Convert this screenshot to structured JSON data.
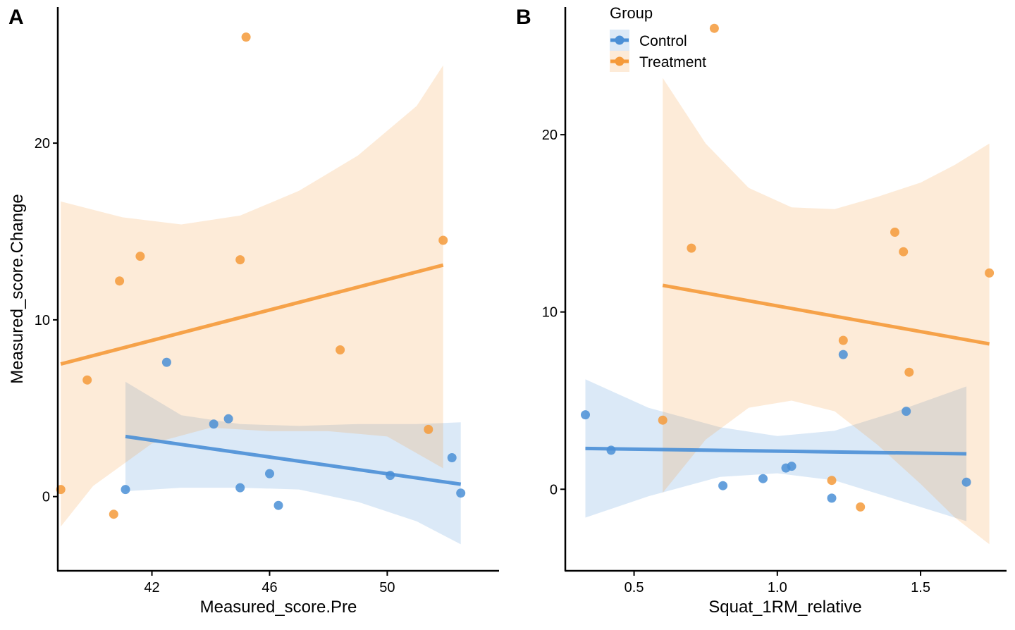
{
  "chart_data": [
    {
      "type": "scatter",
      "panel_tag": "A",
      "xlabel": "Measured_score.Pre",
      "ylabel": "Measured_score.Change",
      "xlim": [
        38.8,
        53.8
      ],
      "ylim": [
        -4.2,
        27.7
      ],
      "xticks": [
        42,
        46,
        50
      ],
      "xtick_labels": [
        "42",
        "46",
        "50"
      ],
      "yticks": [
        0,
        10,
        20
      ],
      "ytick_labels": [
        "0",
        "10",
        "20"
      ],
      "grid": false,
      "series": [
        {
          "name": "Control",
          "points": [
            [
              41.1,
              0.4
            ],
            [
              42.5,
              7.6
            ],
            [
              44.1,
              4.1
            ],
            [
              44.6,
              4.4
            ],
            [
              45.0,
              0.5
            ],
            [
              46.0,
              1.3
            ],
            [
              46.3,
              -0.5
            ],
            [
              50.1,
              1.2
            ],
            [
              52.2,
              2.2
            ],
            [
              52.5,
              0.2
            ]
          ],
          "fit": [
            [
              41.1,
              3.4
            ],
            [
              52.5,
              0.7
            ]
          ],
          "ci_upper": [
            [
              41.1,
              6.5
            ],
            [
              43.0,
              4.6
            ],
            [
              45.0,
              4.1
            ],
            [
              47.0,
              4.0
            ],
            [
              49.0,
              4.1
            ],
            [
              51.0,
              4.1
            ],
            [
              52.5,
              4.2
            ]
          ],
          "ci_lower": [
            [
              41.1,
              0.3
            ],
            [
              43.0,
              0.5
            ],
            [
              45.0,
              0.5
            ],
            [
              47.0,
              0.4
            ],
            [
              49.0,
              -0.3
            ],
            [
              51.0,
              -1.4
            ],
            [
              52.5,
              -2.7
            ]
          ]
        },
        {
          "name": "Treatment",
          "points": [
            [
              38.9,
              0.4
            ],
            [
              39.8,
              6.6
            ],
            [
              40.7,
              -1.0
            ],
            [
              40.9,
              12.2
            ],
            [
              41.6,
              13.6
            ],
            [
              45.0,
              13.4
            ],
            [
              45.2,
              26.0
            ],
            [
              48.4,
              8.3
            ],
            [
              51.4,
              3.8
            ],
            [
              51.9,
              14.5
            ]
          ],
          "fit": [
            [
              38.9,
              7.5
            ],
            [
              51.9,
              13.1
            ]
          ],
          "ci_upper": [
            [
              38.9,
              16.7
            ],
            [
              41.0,
              15.8
            ],
            [
              43.0,
              15.4
            ],
            [
              45.0,
              15.9
            ],
            [
              47.0,
              17.3
            ],
            [
              49.0,
              19.3
            ],
            [
              51.0,
              22.1
            ],
            [
              51.9,
              24.4
            ]
          ],
          "ci_lower": [
            [
              38.9,
              -1.7
            ],
            [
              40.0,
              0.6
            ],
            [
              42.0,
              3.0
            ],
            [
              44.0,
              3.9
            ],
            [
              46.0,
              3.7
            ],
            [
              48.0,
              3.7
            ],
            [
              50.0,
              3.4
            ],
            [
              51.9,
              1.6
            ]
          ]
        }
      ]
    },
    {
      "type": "scatter",
      "panel_tag": "B",
      "xlabel": "Squat_1RM_relative",
      "ylabel": "",
      "xlim": [
        0.26,
        1.8
      ],
      "ylim": [
        -4.6,
        27.2
      ],
      "xticks": [
        0.5,
        1.0,
        1.5
      ],
      "xtick_labels": [
        "0.5",
        "1.0",
        "1.5"
      ],
      "yticks": [
        0,
        10,
        20
      ],
      "ytick_labels": [
        "0",
        "10",
        "20"
      ],
      "grid": false,
      "series": [
        {
          "name": "Control",
          "points": [
            [
              0.33,
              4.2
            ],
            [
              0.42,
              2.2
            ],
            [
              0.81,
              0.2
            ],
            [
              0.95,
              0.6
            ],
            [
              1.03,
              1.2
            ],
            [
              1.05,
              1.3
            ],
            [
              1.19,
              -0.5
            ],
            [
              1.23,
              7.6
            ],
            [
              1.45,
              4.4
            ],
            [
              1.66,
              0.4
            ]
          ],
          "fit": [
            [
              0.33,
              2.3
            ],
            [
              1.66,
              2.0
            ]
          ],
          "ci_upper": [
            [
              0.33,
              6.2
            ],
            [
              0.55,
              4.6
            ],
            [
              0.8,
              3.5
            ],
            [
              1.0,
              3.0
            ],
            [
              1.2,
              3.3
            ],
            [
              1.4,
              4.3
            ],
            [
              1.66,
              5.8
            ]
          ],
          "ci_lower": [
            [
              0.33,
              -1.6
            ],
            [
              0.55,
              -0.4
            ],
            [
              0.8,
              0.7
            ],
            [
              1.0,
              0.9
            ],
            [
              1.2,
              0.5
            ],
            [
              1.4,
              -0.5
            ],
            [
              1.66,
              -1.8
            ]
          ]
        },
        {
          "name": "Treatment",
          "points": [
            [
              0.6,
              3.9
            ],
            [
              0.7,
              13.6
            ],
            [
              0.78,
              26.0
            ],
            [
              1.19,
              0.5
            ],
            [
              1.23,
              8.4
            ],
            [
              1.29,
              -1.0
            ],
            [
              1.41,
              14.5
            ],
            [
              1.44,
              13.4
            ],
            [
              1.46,
              6.6
            ],
            [
              1.74,
              12.2
            ]
          ],
          "fit": [
            [
              0.6,
              11.5
            ],
            [
              1.74,
              8.2
            ]
          ],
          "ci_upper": [
            [
              0.6,
              23.2
            ],
            [
              0.75,
              19.5
            ],
            [
              0.9,
              17.0
            ],
            [
              1.05,
              15.9
            ],
            [
              1.2,
              15.8
            ],
            [
              1.35,
              16.5
            ],
            [
              1.5,
              17.3
            ],
            [
              1.62,
              18.3
            ],
            [
              1.74,
              19.5
            ]
          ],
          "ci_lower": [
            [
              0.6,
              -0.2
            ],
            [
              0.75,
              2.8
            ],
            [
              0.9,
              4.6
            ],
            [
              1.05,
              5.0
            ],
            [
              1.2,
              4.4
            ],
            [
              1.35,
              2.5
            ],
            [
              1.5,
              0.3
            ],
            [
              1.62,
              -1.6
            ],
            [
              1.74,
              -3.1
            ]
          ]
        }
      ]
    }
  ],
  "legend": {
    "title": "Group",
    "position": "top",
    "items": [
      {
        "name": "Control",
        "label": "Control"
      },
      {
        "name": "Treatment",
        "label": "Treatment"
      }
    ]
  },
  "colors": {
    "Control": "#4a8fd6",
    "Treatment": "#f59a3a",
    "Control_band": "#c8ddf1",
    "Treatment_band": "#fde1c6",
    "axis": "#000000"
  }
}
